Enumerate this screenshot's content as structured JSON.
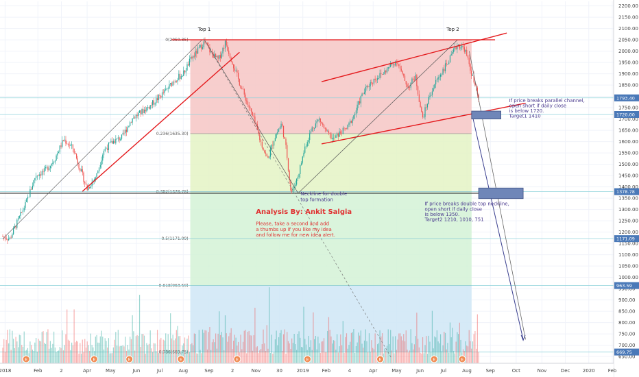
{
  "chart_data": {
    "type": "candlestick",
    "y_axis": {
      "ticks": [
        650,
        700,
        750,
        800,
        850,
        900,
        950,
        1000,
        1050,
        1100,
        1150,
        1200,
        1250,
        1300,
        1350,
        1400,
        1450,
        1500,
        1550,
        1600,
        1650,
        1700,
        1750,
        1800,
        1850,
        1900,
        1950,
        2000,
        2050,
        2100,
        2150,
        2200
      ],
      "tick_labels": [
        "650.00",
        "700.00",
        "750.00",
        "800.00",
        "850.00",
        "900.00",
        "950.00",
        "1000.00",
        "1050.00",
        "1100.00",
        "1150.00",
        "1200.00",
        "1250.00",
        "1300.00",
        "1350.00",
        "1400.00",
        "1450.00",
        "1500.00",
        "1550.00",
        "1600.00",
        "1650.00",
        "1700.00",
        "1750.00",
        "1800.00",
        "1850.00",
        "1900.00",
        "1950.00",
        "2000.00",
        "2050.00",
        "2100.00",
        "2150.00",
        "2200.00"
      ],
      "range": [
        620,
        2220
      ]
    },
    "x_axis": {
      "range_months": [
        0,
        26
      ],
      "ticks": [
        {
          "m": 0.1,
          "label": "2018"
        },
        {
          "m": 1.5,
          "label": "Feb"
        },
        {
          "m": 2.5,
          "label": "2"
        },
        {
          "m": 3.6,
          "label": "Apr"
        },
        {
          "m": 4.6,
          "label": "May"
        },
        {
          "m": 5.7,
          "label": "Jun"
        },
        {
          "m": 6.7,
          "label": "Jul"
        },
        {
          "m": 7.7,
          "label": "Aug"
        },
        {
          "m": 8.8,
          "label": "Sep"
        },
        {
          "m": 9.8,
          "label": "2"
        },
        {
          "m": 10.8,
          "label": "Nov"
        },
        {
          "m": 11.8,
          "label": "30"
        },
        {
          "m": 12.8,
          "label": "2019"
        },
        {
          "m": 13.8,
          "label": "Feb"
        },
        {
          "m": 14.8,
          "label": "4"
        },
        {
          "m": 15.8,
          "label": "Apr"
        },
        {
          "m": 16.8,
          "label": "May"
        },
        {
          "m": 17.8,
          "label": "Jun"
        },
        {
          "m": 18.8,
          "label": "Jul"
        },
        {
          "m": 19.8,
          "label": "Aug"
        },
        {
          "m": 20.8,
          "label": "Sep"
        },
        {
          "m": 21.9,
          "label": "Oct"
        },
        {
          "m": 23.0,
          "label": "Nov"
        },
        {
          "m": 24.0,
          "label": "Dec"
        },
        {
          "m": 25.0,
          "label": "2020"
        },
        {
          "m": 26.0,
          "label": "Feb"
        }
      ]
    },
    "price_path": [
      [
        0.0,
        1180
      ],
      [
        0.3,
        1170
      ],
      [
        0.6,
        1240
      ],
      [
        1.0,
        1330
      ],
      [
        1.4,
        1450
      ],
      [
        1.8,
        1470
      ],
      [
        2.2,
        1520
      ],
      [
        2.6,
        1610
      ],
      [
        3.0,
        1570
      ],
      [
        3.3,
        1480
      ],
      [
        3.6,
        1390
      ],
      [
        4.0,
        1450
      ],
      [
        4.3,
        1560
      ],
      [
        4.7,
        1600
      ],
      [
        5.1,
        1620
      ],
      [
        5.5,
        1700
      ],
      [
        5.9,
        1730
      ],
      [
        6.3,
        1760
      ],
      [
        6.6,
        1790
      ],
      [
        7.0,
        1830
      ],
      [
        7.3,
        1870
      ],
      [
        7.7,
        1900
      ],
      [
        8.0,
        1960
      ],
      [
        8.3,
        2000
      ],
      [
        8.6,
        2040
      ],
      [
        8.9,
        1990
      ],
      [
        9.2,
        1960
      ],
      [
        9.5,
        2040
      ],
      [
        9.8,
        1950
      ],
      [
        10.1,
        1860
      ],
      [
        10.4,
        1780
      ],
      [
        10.7,
        1700
      ],
      [
        11.0,
        1600
      ],
      [
        11.3,
        1520
      ],
      [
        11.6,
        1620
      ],
      [
        11.9,
        1680
      ],
      [
        12.1,
        1560
      ],
      [
        12.3,
        1370
      ],
      [
        12.6,
        1450
      ],
      [
        12.9,
        1580
      ],
      [
        13.2,
        1660
      ],
      [
        13.5,
        1700
      ],
      [
        13.8,
        1640
      ],
      [
        14.1,
        1610
      ],
      [
        14.4,
        1640
      ],
      [
        14.7,
        1660
      ],
      [
        15.0,
        1720
      ],
      [
        15.3,
        1800
      ],
      [
        15.6,
        1850
      ],
      [
        15.9,
        1880
      ],
      [
        16.2,
        1900
      ],
      [
        16.5,
        1930
      ],
      [
        16.8,
        1960
      ],
      [
        17.1,
        1880
      ],
      [
        17.3,
        1840
      ],
      [
        17.6,
        1890
      ],
      [
        17.9,
        1700
      ],
      [
        18.2,
        1800
      ],
      [
        18.5,
        1870
      ],
      [
        18.8,
        1920
      ],
      [
        19.1,
        1970
      ],
      [
        19.4,
        2030
      ],
      [
        19.7,
        2010
      ],
      [
        19.9,
        1940
      ],
      [
        20.1,
        1860
      ],
      [
        20.3,
        1790
      ]
    ],
    "volume_max": 3.0,
    "fib_levels": [
      {
        "label": "0(2050.35)",
        "value": 2050.35
      },
      {
        "label": "0.236(1635.30)",
        "value": 1635.3
      },
      {
        "label": "0.382(1378.78)",
        "value": 1378.78
      },
      {
        "label": "0.5(1171.09)",
        "value": 1171.09
      },
      {
        "label": "0.618(963.59)",
        "value": 963.59
      },
      {
        "label": "0.786(669.75)",
        "value": 669.75
      }
    ],
    "price_tags": [
      {
        "label": "1793.40",
        "value": 1793.4
      },
      {
        "label": "1720.00",
        "value": 1720.0
      },
      {
        "label": "1378.78",
        "value": 1378.78
      },
      {
        "label": "1171.09",
        "value": 1171.09
      },
      {
        "label": "963.59",
        "value": 963.59
      },
      {
        "label": "669.75",
        "value": 669.75
      }
    ],
    "annotations": {
      "top1": "Top 1",
      "top2": "Top 2",
      "neckline_l1": "Neckline for double",
      "neckline_l2": "top formation",
      "analysis": "Analysis By: Ankit Salgia",
      "please_l1": "Please, take a second and add",
      "please_l2": "a thumbs up if you like my idea",
      "please_l3": "and follow me for new idea alert.",
      "channel_l1": "If price breaks parallel channel,",
      "channel_l2": "open short if daily close",
      "channel_l3": "is below 1720.",
      "channel_l4": "Target1 1410",
      "dbl_l1": "If price breaks double top neckline,",
      "dbl_l2": "open short if daily close",
      "dbl_l3": "is below 1350.",
      "dbl_l4": "Target2 1210, 1010, 751"
    },
    "earnings_markers": [
      {
        "m": 1.0,
        "label": "E"
      },
      {
        "m": 3.9,
        "label": "E"
      },
      {
        "m": 5.4,
        "label": "E"
      },
      {
        "m": 7.6,
        "label": "E"
      },
      {
        "m": 10.0,
        "label": "E"
      },
      {
        "m": 13.0,
        "label": "E"
      },
      {
        "m": 16.1,
        "label": "E"
      },
      {
        "m": 18.4,
        "label": "E"
      },
      {
        "m": 19.6,
        "label": "E"
      }
    ],
    "colors": {
      "up": "#26a69a",
      "down": "#ef5350",
      "trend_red": "#e4191c",
      "note_purple": "#4a3a8e",
      "note_red": "#e03030",
      "tag_blue": "#4a79b8",
      "hline": "#8fd3dc",
      "zone_red": "#f6c6c4",
      "zone_green": "#e4f3c4",
      "zone_green2": "#d4f2d6",
      "zone_blue": "#cfe6f6"
    },
    "grid": true
  }
}
